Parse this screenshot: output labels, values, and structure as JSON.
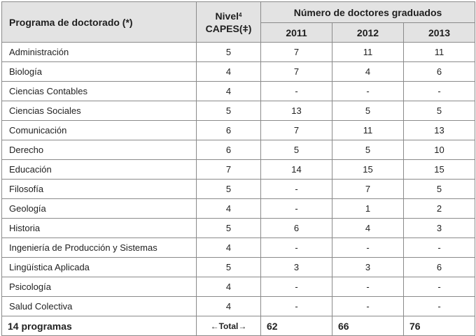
{
  "header": {
    "programa_label": "Programa de doctorado (*)",
    "nivel_line1": "Nivel",
    "nivel_sup": "4",
    "nivel_line2": "CAPES(ǂ)",
    "group_label": "Número de doctores graduados",
    "years": [
      "2011",
      "2012",
      "2013"
    ]
  },
  "rows": [
    {
      "programa": "Administración",
      "nivel": "5",
      "y2011": "7",
      "y2012": "11",
      "y2013": "11"
    },
    {
      "programa": "Biología",
      "nivel": "4",
      "y2011": "7",
      "y2012": "4",
      "y2013": "6"
    },
    {
      "programa": "Ciencias Contables",
      "nivel": "4",
      "y2011": "-",
      "y2012": "-",
      "y2013": "-"
    },
    {
      "programa": "Ciencias Sociales",
      "nivel": "5",
      "y2011": "13",
      "y2012": "5",
      "y2013": "5"
    },
    {
      "programa": "Comunicación",
      "nivel": "6",
      "y2011": "7",
      "y2012": "11",
      "y2013": "13"
    },
    {
      "programa": "Derecho",
      "nivel": "6",
      "y2011": "5",
      "y2012": "5",
      "y2013": "10"
    },
    {
      "programa": "Educación",
      "nivel": "7",
      "y2011": "14",
      "y2012": "15",
      "y2013": "15"
    },
    {
      "programa": "Filosofía",
      "nivel": "5",
      "y2011": "-",
      "y2012": "7",
      "y2013": "5"
    },
    {
      "programa": "Geología",
      "nivel": "4",
      "y2011": "-",
      "y2012": "1",
      "y2013": "2"
    },
    {
      "programa": "Historia",
      "nivel": "5",
      "y2011": "6",
      "y2012": "4",
      "y2013": "3"
    },
    {
      "programa": "Ingeniería de Producción y Sistemas",
      "nivel": "4",
      "y2011": "-",
      "y2012": "-",
      "y2013": "-"
    },
    {
      "programa": "Lingüística Aplicada",
      "nivel": "5",
      "y2011": "3",
      "y2012": "3",
      "y2013": "6"
    },
    {
      "programa": "Psicología",
      "nivel": "4",
      "y2011": "-",
      "y2012": "-",
      "y2013": "-"
    },
    {
      "programa": "Salud Colectiva",
      "nivel": "4",
      "y2011": "-",
      "y2012": "-",
      "y2013": "-"
    }
  ],
  "total": {
    "label": "14 programas",
    "nivel_label": "←Total→",
    "y2011": "62",
    "y2012": "66",
    "y2013": "76"
  }
}
